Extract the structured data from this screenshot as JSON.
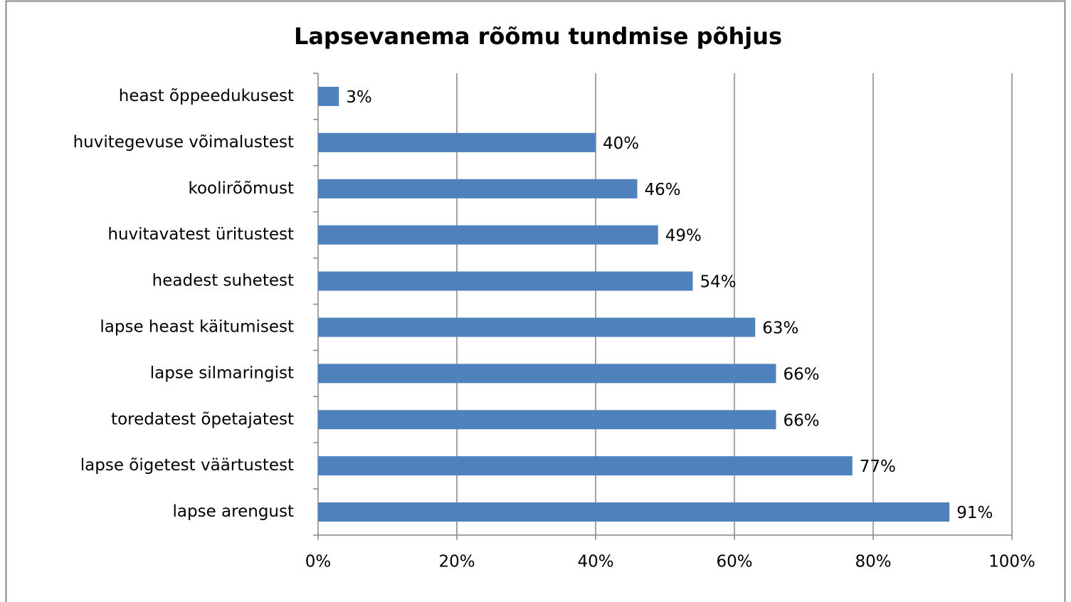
{
  "chart_data": {
    "type": "bar",
    "orientation": "horizontal",
    "title": "Lapsevanema rõõmu tundmise põhjus",
    "categories": [
      "heast õppeedukusest",
      "huvitegevuse võimalustest",
      "koolirõõmust",
      "huvitavatest üritustest",
      "headest suhetest",
      "lapse heast käitumisest",
      "lapse silmaringist",
      "toredatest õpetajatest",
      "lapse õigetest väärtustest",
      "lapse arengust"
    ],
    "values": [
      3,
      40,
      46,
      49,
      54,
      63,
      66,
      66,
      77,
      91
    ],
    "value_labels": [
      "3%",
      "40%",
      "46%",
      "49%",
      "54%",
      "63%",
      "66%",
      "66%",
      "77%",
      "91%"
    ],
    "color": "#4f81bd",
    "xlim": [
      0,
      100
    ],
    "xticks": [
      {
        "value": 0,
        "label": "0%"
      },
      {
        "value": 20,
        "label": "20%"
      },
      {
        "value": 40,
        "label": "40%"
      },
      {
        "value": 60,
        "label": "60%"
      },
      {
        "value": 80,
        "label": "80%"
      },
      {
        "value": 100,
        "label": "100%"
      }
    ],
    "grid": true
  }
}
